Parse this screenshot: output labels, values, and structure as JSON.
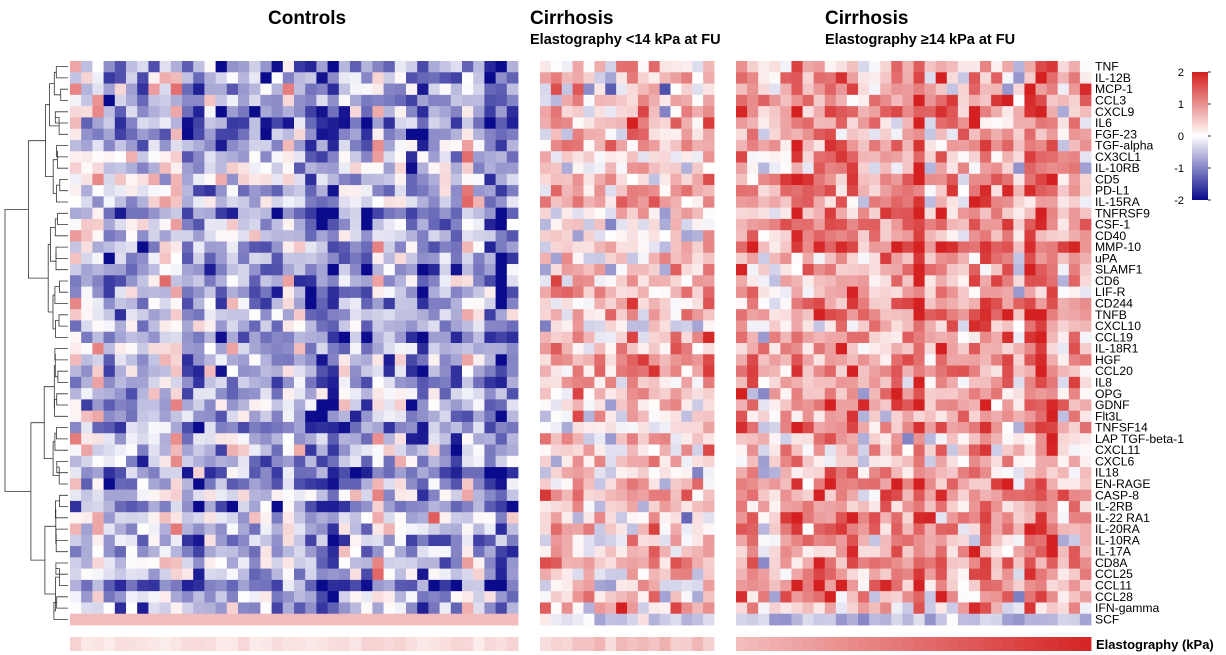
{
  "chart_data": {
    "type": "heatmap",
    "groups": [
      {
        "title": "Controls",
        "subtitle": ""
      },
      {
        "title": "Cirrhosis",
        "subtitle": "Elastography <14 kPa at FU"
      },
      {
        "title": "Cirrhosis",
        "subtitle": "Elastography ≥14 kPa at FU"
      }
    ],
    "rows": [
      "TNF",
      "IL-12B",
      "MCP-1",
      "CCL3",
      "CXCL9",
      "IL6",
      "FGF-23",
      "TGF-alpha",
      "CX3CL1",
      "IL-10RB",
      "CD5",
      "PD-L1",
      "IL-15RA",
      "TNFRSF9",
      "CSF-1",
      "CD40",
      "MMP-10",
      "uPA",
      "SLAMF1",
      "CD6",
      "LIF-R",
      "CD244",
      "TNFB",
      "CXCL10",
      "CCL19",
      "IL-18R1",
      "HGF",
      "CCL20",
      "IL8",
      "OPG",
      "GDNF",
      "Flt3L",
      "TNFSF14",
      "LAP TGF-beta-1",
      "CXCL11",
      "CXCL6",
      "IL18",
      "EN-RAGE",
      "CASP-8",
      "IL-2RB",
      "IL-22 RA1",
      "IL-20RA",
      "IL-10RA",
      "IL-17A",
      "CD8A",
      "CCL25",
      "CCL11",
      "CCL28",
      "IFN-gamma",
      "SCF"
    ],
    "colorscale": {
      "min": -2,
      "max": 2,
      "ticks": [
        "2",
        "1",
        "0",
        "-1",
        "-2"
      ],
      "low_color": "#0a0a8c",
      "mid_color": "#ffffff",
      "high_color": "#d42020"
    },
    "annotation_label": "Elastography (kPa)",
    "dendrogram": "left"
  }
}
